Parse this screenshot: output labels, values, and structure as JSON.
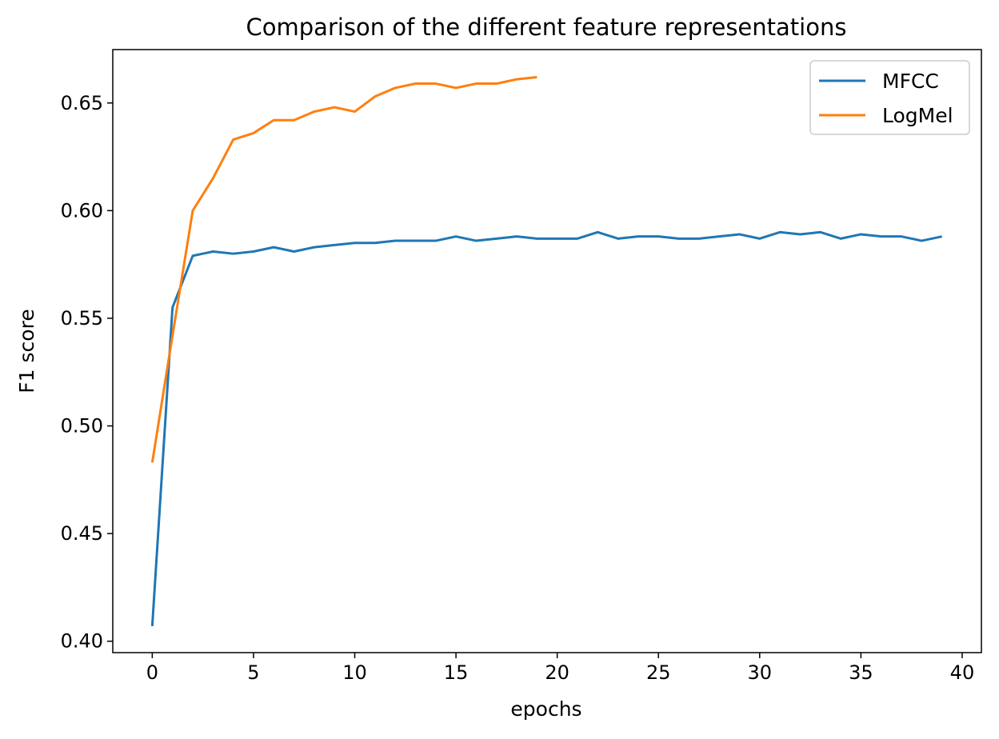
{
  "chart_data": {
    "type": "line",
    "title": "Comparison of the different feature representations",
    "xlabel": "epochs",
    "ylabel": "F1 score",
    "xlim": [
      -1.95,
      40.95
    ],
    "ylim": [
      0.3947,
      0.6748
    ],
    "xticks": [
      0,
      5,
      10,
      15,
      20,
      25,
      30,
      35,
      40
    ],
    "xtick_labels": [
      "0",
      "5",
      "10",
      "15",
      "20",
      "25",
      "30",
      "35",
      "40"
    ],
    "yticks": [
      0.4,
      0.45,
      0.5,
      0.55,
      0.6,
      0.65
    ],
    "ytick_labels": [
      "0.40",
      "0.45",
      "0.50",
      "0.55",
      "0.60",
      "0.65"
    ],
    "grid": false,
    "legend_position": "upper right",
    "series": [
      {
        "name": "MFCC",
        "color": "#1f77b4",
        "x": [
          0,
          1,
          2,
          3,
          4,
          5,
          6,
          7,
          8,
          9,
          10,
          11,
          12,
          13,
          14,
          15,
          16,
          17,
          18,
          19,
          20,
          21,
          22,
          23,
          24,
          25,
          26,
          27,
          28,
          29,
          30,
          31,
          32,
          33,
          34,
          35,
          36,
          37,
          38,
          39
        ],
        "values": [
          0.407,
          0.555,
          0.579,
          0.581,
          0.58,
          0.581,
          0.583,
          0.581,
          0.583,
          0.584,
          0.585,
          0.585,
          0.586,
          0.586,
          0.586,
          0.588,
          0.586,
          0.587,
          0.588,
          0.587,
          0.587,
          0.587,
          0.59,
          0.587,
          0.588,
          0.588,
          0.587,
          0.587,
          0.588,
          0.589,
          0.587,
          0.59,
          0.589,
          0.59,
          0.587,
          0.589,
          0.588,
          0.588,
          0.586,
          0.588
        ]
      },
      {
        "name": "LogMel",
        "color": "#ff7f0e",
        "x": [
          0,
          1,
          2,
          3,
          4,
          5,
          6,
          7,
          8,
          9,
          10,
          11,
          12,
          13,
          14,
          15,
          16,
          17,
          18,
          19
        ],
        "values": [
          0.483,
          0.542,
          0.6,
          0.615,
          0.633,
          0.636,
          0.642,
          0.642,
          0.646,
          0.648,
          0.646,
          0.653,
          0.657,
          0.659,
          0.659,
          0.657,
          0.659,
          0.659,
          0.661,
          0.662
        ]
      }
    ]
  }
}
